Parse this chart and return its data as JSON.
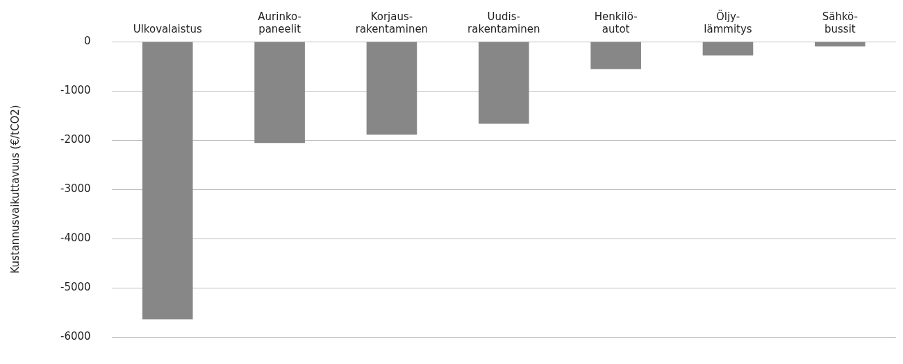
{
  "chart_data": {
    "type": "bar",
    "ylabel": "Kustannusvaikuttavuus (€/tCO2)",
    "categories": [
      "Ulkovalaistus",
      "Aurinko-\npaneelit",
      "Korjaus-\nrakentaminen",
      "Uudis-\nrakentaminen",
      "Henkilö-\nautot",
      "Öljy-\nlämmitys",
      "Sähkö-\nbussit"
    ],
    "values": [
      -5640,
      -2060,
      -1890,
      -1670,
      -560,
      -280,
      -100
    ],
    "color": "#878787",
    "ylim": [
      -6000,
      0
    ],
    "yticks": [
      -6000,
      -5000,
      -4000,
      -3000,
      -2000,
      -1000,
      0
    ],
    "grid": "y",
    "legend": false
  }
}
